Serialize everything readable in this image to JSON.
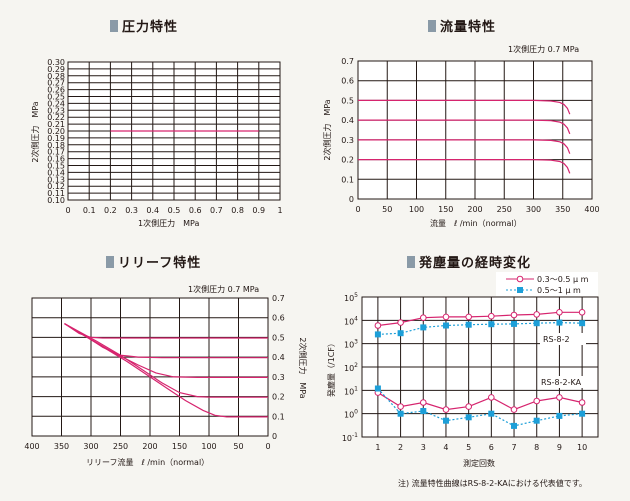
{
  "colors": {
    "background": "#f6f5f1",
    "curve": "#d6246e",
    "series_b": "#1d9fd8",
    "grid": "#231815",
    "title_marker": "#8a9aa7"
  },
  "note": "注) 流量特性曲線はRS-8-2-KAにおける代表値です。",
  "chart_data": [
    {
      "type": "line",
      "title": "圧力特性",
      "xlabel": "1次側圧力　MPa",
      "ylabel": "2次側圧力　MPa",
      "xlim": [
        0,
        1
      ],
      "ylim": [
        0.1,
        0.3
      ],
      "xticks": [
        "0",
        "0.1",
        "0.2",
        "0.3",
        "0.4",
        "0.5",
        "0.6",
        "0.7",
        "0.8",
        "0.9",
        "1"
      ],
      "yticks": [
        "0.30",
        "0.29",
        "0.28",
        "0.27",
        "0.26",
        "0.25",
        "0.24",
        "0.23",
        "0.22",
        "0.21",
        "0.20",
        "0.19",
        "0.18",
        "0.17",
        "0.16",
        "0.15",
        "0.14",
        "0.13",
        "0.12",
        "0.11",
        "0.10"
      ],
      "grid": true,
      "series": [
        {
          "x": [
            0.2,
            0.9
          ],
          "y": [
            0.2,
            0.2
          ]
        }
      ]
    },
    {
      "type": "line",
      "title": "流量特性",
      "annotation": "1次側圧力 0.7 MPa",
      "xlabel": "流量　ℓ /min（normal）",
      "ylabel": "2次側圧力　MPa",
      "xlim": [
        0,
        400
      ],
      "ylim": [
        0,
        0.7
      ],
      "xticks": [
        "0",
        "50",
        "100",
        "150",
        "200",
        "250",
        "300",
        "350",
        "400"
      ],
      "yticks": [
        "0.7",
        "0.6",
        "0.5",
        "0.4",
        "0.3",
        "0.2",
        "0.1",
        "0"
      ],
      "grid": true,
      "series": [
        {
          "x": [
            0,
            300,
            330,
            345,
            352,
            358,
            362
          ],
          "y": [
            0.5,
            0.5,
            0.497,
            0.49,
            0.48,
            0.46,
            0.43
          ]
        },
        {
          "x": [
            0,
            300,
            330,
            345,
            352,
            358,
            362
          ],
          "y": [
            0.4,
            0.4,
            0.397,
            0.39,
            0.38,
            0.36,
            0.33
          ]
        },
        {
          "x": [
            0,
            300,
            330,
            345,
            352,
            358,
            362
          ],
          "y": [
            0.3,
            0.3,
            0.297,
            0.29,
            0.28,
            0.26,
            0.23
          ]
        },
        {
          "x": [
            0,
            300,
            330,
            345,
            352,
            358,
            362
          ],
          "y": [
            0.2,
            0.2,
            0.197,
            0.19,
            0.18,
            0.16,
            0.13
          ]
        }
      ]
    },
    {
      "type": "line",
      "title": "リリーフ特性",
      "annotation": "1次側圧力 0.7 MPa",
      "xlabel": "リリーフ流量　ℓ /min（normal）",
      "ylabel": "2次側圧力　MPa",
      "xlim": [
        400,
        0
      ],
      "ylim": [
        0,
        0.7
      ],
      "xticks": [
        "400",
        "350",
        "300",
        "250",
        "200",
        "150",
        "100",
        "50",
        "0"
      ],
      "yticks": [
        "0.7",
        "0.6",
        "0.5",
        "0.4",
        "0.3",
        "0.2",
        "0.1",
        "0"
      ],
      "grid": true,
      "series": [
        {
          "x": [
            345,
            320,
            300,
            280,
            250,
            210,
            150,
            0
          ],
          "y": [
            0.57,
            0.52,
            0.5,
            0.497,
            0.497,
            0.497,
            0.497,
            0.497
          ]
        },
        {
          "x": [
            345,
            310,
            280,
            250,
            220,
            180,
            120,
            0
          ],
          "y": [
            0.57,
            0.51,
            0.45,
            0.41,
            0.4,
            0.397,
            0.397,
            0.397
          ]
        },
        {
          "x": [
            345,
            300,
            260,
            220,
            190,
            160,
            120,
            0
          ],
          "y": [
            0.57,
            0.49,
            0.42,
            0.36,
            0.32,
            0.3,
            0.297,
            0.297
          ]
        },
        {
          "x": [
            345,
            290,
            250,
            210,
            180,
            150,
            120,
            100,
            0
          ],
          "y": [
            0.57,
            0.48,
            0.41,
            0.33,
            0.27,
            0.22,
            0.2,
            0.197,
            0.197
          ]
        },
        {
          "x": [
            345,
            290,
            240,
            200,
            170,
            140,
            110,
            90,
            70,
            0
          ],
          "y": [
            0.57,
            0.47,
            0.38,
            0.3,
            0.24,
            0.18,
            0.13,
            0.105,
            0.097,
            0.097
          ]
        }
      ]
    },
    {
      "type": "line",
      "title": "発塵量の経時変化",
      "xlabel": "測定回数",
      "ylabel": "発塵量（/1CF）",
      "xlim": [
        0.3,
        10.7
      ],
      "ylim_log10": [
        -1,
        5
      ],
      "xticks": [
        "1",
        "2",
        "3",
        "4",
        "5",
        "6",
        "7",
        "8",
        "9",
        "10"
      ],
      "ytick_exponents": [
        "5",
        "4",
        "3",
        "2",
        "1",
        "0",
        "-1"
      ],
      "labels": [
        "RS-8-2",
        "RS-8-2-KA"
      ],
      "grid": true,
      "series": [
        {
          "name": "0.3〜0.5 μ m",
          "x": [
            1,
            2,
            3,
            4,
            5,
            6,
            7,
            8,
            9,
            10
          ],
          "values": [
            6000,
            8000,
            13000,
            14000,
            14000,
            15000,
            17000,
            18000,
            22000,
            22000
          ]
        },
        {
          "name": "0.5〜1 μ m",
          "x": [
            1,
            2,
            3,
            4,
            5,
            6,
            7,
            8,
            9,
            10
          ],
          "values": [
            2500,
            2800,
            5000,
            6000,
            6500,
            6800,
            7000,
            7500,
            8000,
            7500
          ]
        },
        {
          "name": "0.3〜0.5 μ m",
          "x": [
            1,
            2,
            3,
            4,
            5,
            6,
            7,
            8,
            9,
            10
          ],
          "values": [
            8,
            2,
            3,
            1.5,
            2,
            5,
            1.5,
            3.5,
            5,
            3
          ]
        },
        {
          "name": "0.5〜1 μ m",
          "x": [
            1,
            2,
            3,
            4,
            5,
            6,
            7,
            8,
            9,
            10
          ],
          "values": [
            12,
            1,
            1.3,
            0.5,
            0.7,
            1,
            0.3,
            0.5,
            0.8,
            1
          ]
        }
      ]
    }
  ]
}
